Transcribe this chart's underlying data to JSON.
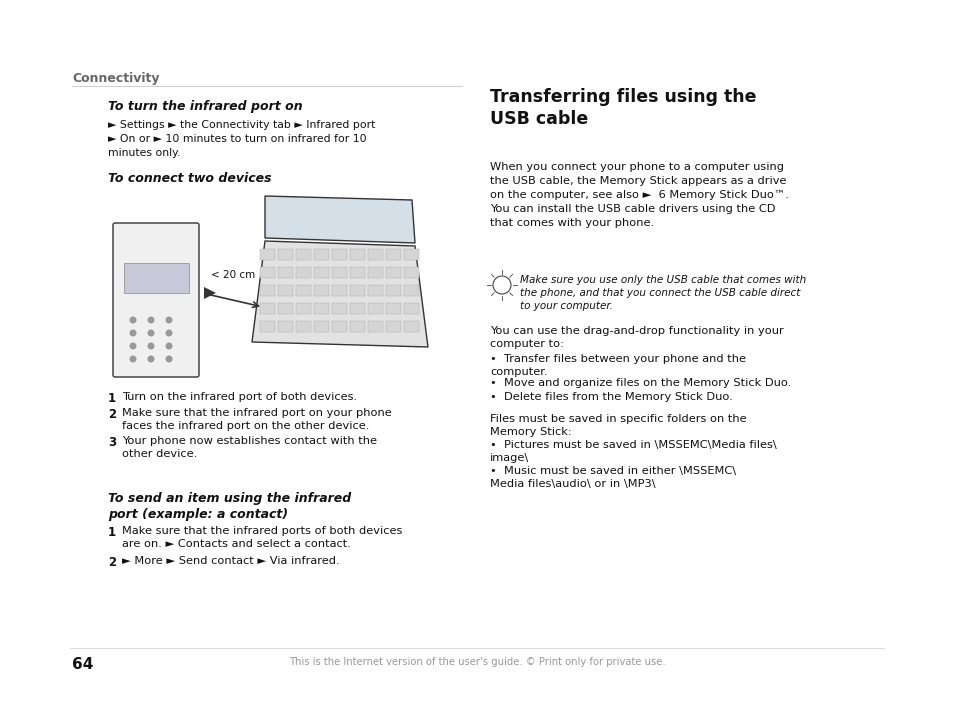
{
  "bg_color": "#ffffff",
  "page_width": 9.54,
  "page_height": 7.1,
  "dpi": 100,
  "connectivity_label": "Connectivity",
  "s1_title": "To turn the infrared port on",
  "s1_line1": "► Settings ► the Connectivity tab ► Infrared port",
  "s1_line2": "► On or ► 10 minutes to turn on infrared for 10",
  "s1_line3": "minutes only.",
  "s2_title": "To connect two devices",
  "step1_num": "1",
  "step1_text": "Turn on the infrared port of both devices.",
  "step2_num": "2",
  "step2_text": "Make sure that the infrared port on your phone\nfaces the infrared port on the other device.",
  "step3_num": "3",
  "step3_text": "Your phone now establishes contact with the\nother device.",
  "s3_title": "To send an item using the infrared\nport (example: a contact)",
  "step4_num": "1",
  "step4_text": "Make sure that the infrared ports of both devices\nare on. ► Contacts and select a contact.",
  "step5_num": "2",
  "step5_text": "► More ► Send contact ► Via infrared.",
  "right_title": "Transferring files using the\nUSB cable",
  "right_p1_l1": "When you connect your phone to a computer using",
  "right_p1_l2": "the USB cable, the Memory Stick appears as a drive",
  "right_p1_l3": "on the computer, see also ►  6 Memory Stick Duo™.",
  "right_p1_l4": "You can install the USB cable drivers using the CD",
  "right_p1_l5": "that comes with your phone.",
  "right_tip": "Make sure you use only the USB cable that comes with\nthe phone, and that you connect the USB cable direct\nto your computer.",
  "right_p2": "You can use the drag-and-drop functionality in your\ncomputer to:",
  "right_b1": "Transfer files between your phone and the\ncomputer.",
  "right_b2": "Move and organize files on the Memory Stick Duo.",
  "right_b3": "Delete files from the Memory Stick Duo.",
  "right_p3": "Files must be saved in specific folders on the\nMemory Stick:",
  "right_b4": "Pictures must be saved in \\MSSEMC\\Media files\\\nimage\\",
  "right_b5": "Music must be saved in either \\MSSEMC\\\nMedia files\\audio\\ or in \\MP3\\",
  "footer": "This is the Internet version of the user's guide. © Print only for private use.",
  "page_num": "64",
  "dark": "#111111",
  "gray": "#666666",
  "light_gray": "#aaaaaa",
  "footer_gray": "#999999"
}
